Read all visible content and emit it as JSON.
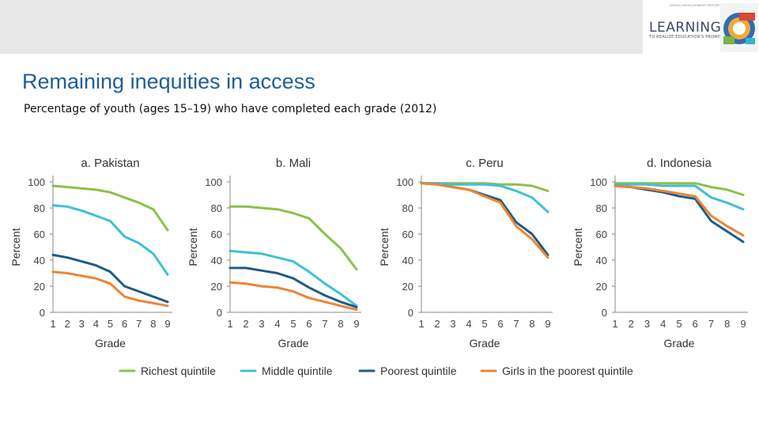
{
  "header": {
    "logo_word": "LEARNING",
    "logo_tagline": "TO REALIZE EDUCATION'S PROMISE",
    "logo_top_text": "WORLD DEVELOPMENT REPORT"
  },
  "title": "Remaining inequities in access",
  "subtitle": "Percentage of youth (ages 15–19) who have completed each grade (2012)",
  "colors": {
    "richest": "#8dc04a",
    "middle": "#3ec0d8",
    "poorest": "#1f5c86",
    "girls": "#ee8433",
    "title": "#1f5f99",
    "axis": "#555555"
  },
  "legend": [
    {
      "key": "richest",
      "label": "Richest quintile"
    },
    {
      "key": "middle",
      "label": "Middle quintile"
    },
    {
      "key": "poorest",
      "label": "Poorest quintile"
    },
    {
      "key": "girls",
      "label": "Girls in the poorest quintile"
    }
  ],
  "chart_data": [
    {
      "type": "line",
      "title": "a. Pakistan",
      "xlabel": "Grade",
      "ylabel": "Percent",
      "x": [
        1,
        2,
        3,
        4,
        5,
        6,
        7,
        8,
        9
      ],
      "yticks": [
        0,
        20,
        40,
        60,
        80,
        100
      ],
      "ylim": [
        0,
        100
      ],
      "series": [
        {
          "name": "Richest quintile",
          "key": "richest",
          "values": [
            97,
            96,
            95,
            94,
            92,
            88,
            84,
            79,
            63
          ]
        },
        {
          "name": "Middle quintile",
          "key": "middle",
          "values": [
            82,
            81,
            78,
            74,
            70,
            58,
            53,
            45,
            29
          ]
        },
        {
          "name": "Poorest quintile",
          "key": "poorest",
          "values": [
            44,
            42,
            39,
            36,
            31,
            20,
            16,
            12,
            8
          ]
        },
        {
          "name": "Girls in the poorest quintile",
          "key": "girls",
          "values": [
            31,
            30,
            28,
            26,
            22,
            12,
            9,
            7,
            5
          ]
        }
      ]
    },
    {
      "type": "line",
      "title": "b. Mali",
      "xlabel": "Grade",
      "ylabel": "Percent",
      "x": [
        1,
        2,
        3,
        4,
        5,
        6,
        7,
        8,
        9
      ],
      "yticks": [
        0,
        20,
        40,
        60,
        80,
        100
      ],
      "ylim": [
        0,
        100
      ],
      "series": [
        {
          "name": "Richest quintile",
          "key": "richest",
          "values": [
            81,
            81,
            80,
            79,
            76,
            72,
            60,
            49,
            33
          ]
        },
        {
          "name": "Middle quintile",
          "key": "middle",
          "values": [
            47,
            46,
            45,
            42,
            39,
            31,
            22,
            14,
            5
          ]
        },
        {
          "name": "Poorest quintile",
          "key": "poorest",
          "values": [
            34,
            34,
            32,
            30,
            26,
            19,
            13,
            8,
            4
          ]
        },
        {
          "name": "Girls in the poorest quintile",
          "key": "girls",
          "values": [
            23,
            22,
            20,
            19,
            16,
            11,
            8,
            5,
            2
          ]
        }
      ]
    },
    {
      "type": "line",
      "title": "c. Peru",
      "xlabel": "Grade",
      "ylabel": "Percent",
      "x": [
        1,
        2,
        3,
        4,
        5,
        6,
        7,
        8,
        9
      ],
      "yticks": [
        0,
        20,
        40,
        60,
        80,
        100
      ],
      "ylim": [
        0,
        100
      ],
      "series": [
        {
          "name": "Richest quintile",
          "key": "richest",
          "values": [
            99,
            99,
            99,
            99,
            99,
            98,
            98,
            97,
            93
          ]
        },
        {
          "name": "Middle quintile",
          "key": "middle",
          "values": [
            99,
            99,
            98,
            98,
            98,
            97,
            93,
            88,
            77
          ]
        },
        {
          "name": "Poorest quintile",
          "key": "poorest",
          "values": [
            99,
            98,
            96,
            94,
            90,
            86,
            69,
            60,
            44
          ]
        },
        {
          "name": "Girls in the poorest quintile",
          "key": "girls",
          "values": [
            99,
            98,
            96,
            94,
            89,
            84,
            66,
            56,
            42
          ]
        }
      ]
    },
    {
      "type": "line",
      "title": "d. Indonesia",
      "xlabel": "Grade",
      "ylabel": "Percent",
      "x": [
        1,
        2,
        3,
        4,
        5,
        6,
        7,
        8,
        9
      ],
      "yticks": [
        0,
        20,
        40,
        60,
        80,
        100
      ],
      "ylim": [
        0,
        100
      ],
      "series": [
        {
          "name": "Richest quintile",
          "key": "richest",
          "values": [
            99,
            99,
            99,
            99,
            99,
            99,
            96,
            94,
            90
          ]
        },
        {
          "name": "Middle quintile",
          "key": "middle",
          "values": [
            98,
            98,
            98,
            97,
            97,
            97,
            88,
            84,
            79
          ]
        },
        {
          "name": "Poorest quintile",
          "key": "poorest",
          "values": [
            97,
            96,
            94,
            92,
            89,
            87,
            70,
            62,
            54
          ]
        },
        {
          "name": "Girls in the poorest quintile",
          "key": "girls",
          "values": [
            97,
            96,
            95,
            93,
            91,
            89,
            74,
            66,
            59
          ]
        }
      ]
    }
  ]
}
